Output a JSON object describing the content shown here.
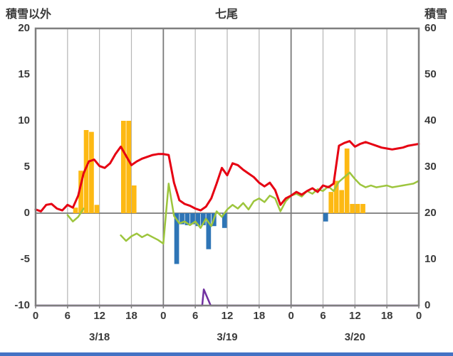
{
  "header": {
    "left_axis_label": "積雪以外",
    "title": "七尾",
    "right_axis_label": "積雪"
  },
  "style": {
    "grid_major": "#7a7a7a",
    "grid_minor": "#b5b5b5",
    "border": "#7f7f7f",
    "text_color": "#3a3a3a",
    "bottom_bar_color": "#4472c4"
  },
  "chart_data": {
    "type": "line",
    "title": "七尾",
    "x": {
      "unit": "hour",
      "min": 0,
      "max": 72,
      "tick_step": 6,
      "tick_labels": [
        "0",
        "6",
        "12",
        "18",
        "0",
        "6",
        "12",
        "18",
        "0",
        "6",
        "12",
        "18",
        "0"
      ],
      "day_labels": [
        "3/18",
        "3/19",
        "3/20"
      ]
    },
    "left_axis": {
      "label": "積雪以外",
      "min": -10,
      "max": 20,
      "ticks": [
        20,
        15,
        10,
        5,
        0,
        -5,
        -10
      ]
    },
    "right_axis": {
      "label": "積雪",
      "min": 0,
      "max": 60,
      "ticks": [
        60,
        50,
        40,
        30,
        20,
        10,
        0
      ]
    },
    "grid": true,
    "legend": "none",
    "series": [
      {
        "name": "orange-bars",
        "type": "bar",
        "axis": "left",
        "color": "#fdb913",
        "points": [
          [
            7,
            0.6
          ],
          [
            8,
            4.6
          ],
          [
            9,
            9.0
          ],
          [
            10,
            8.8
          ],
          [
            11,
            0.9
          ],
          [
            16,
            10.0
          ],
          [
            17,
            10.0
          ],
          [
            18,
            3.0
          ],
          [
            55,
            2.3
          ],
          [
            56,
            3.5
          ],
          [
            57,
            2.5
          ],
          [
            58,
            7.0
          ],
          [
            59,
            1.0
          ],
          [
            60,
            1.0
          ],
          [
            61,
            1.0
          ]
        ]
      },
      {
        "name": "blue-bars",
        "type": "bar",
        "axis": "left",
        "color": "#2e75b6",
        "points": [
          [
            26,
            -5.5
          ],
          [
            27,
            -1.2
          ],
          [
            28,
            -1.3
          ],
          [
            29,
            -1.2
          ],
          [
            30,
            -1.4
          ],
          [
            31,
            -1.3
          ],
          [
            32,
            -3.9
          ],
          [
            33,
            -1.4
          ],
          [
            35,
            -1.6
          ],
          [
            54,
            -0.9
          ]
        ]
      },
      {
        "name": "green-line",
        "type": "line",
        "axis": "left",
        "color": "#9dc53d",
        "width": 2.5,
        "values": [
          null,
          null,
          null,
          null,
          null,
          null,
          -0.2,
          -0.9,
          -0.4,
          0.5,
          null,
          null,
          null,
          null,
          null,
          null,
          -2.4,
          -3.0,
          -2.5,
          -2.2,
          -2.6,
          -2.3,
          -2.6,
          -2.9,
          -3.3,
          3.2,
          -0.3,
          -1.1,
          -0.9,
          -1.3,
          -0.9,
          -1.6,
          -0.6,
          -1.4,
          0.2,
          -0.4,
          0.4,
          0.9,
          0.5,
          1.1,
          0.4,
          1.3,
          1.6,
          1.2,
          1.9,
          1.6,
          0.2,
          1.3,
          1.9,
          2.1,
          1.8,
          2.4,
          2.1,
          2.6,
          2.4,
          2.9,
          2.4,
          3.4,
          3.9,
          4.4,
          3.7,
          3.1,
          2.8,
          3.0,
          2.8,
          2.9,
          3.0,
          2.8,
          2.9,
          3.0,
          3.1,
          3.2,
          3.5
        ]
      },
      {
        "name": "red-temperature-line",
        "type": "line",
        "axis": "left",
        "color": "#e60012",
        "width": 3,
        "values": [
          0.4,
          0.2,
          0.9,
          1.0,
          0.5,
          0.3,
          0.9,
          0.6,
          1.9,
          4.3,
          5.6,
          5.8,
          5.1,
          4.9,
          5.4,
          6.4,
          7.2,
          6.2,
          5.2,
          5.6,
          5.9,
          6.1,
          6.3,
          6.4,
          6.4,
          6.3,
          3.3,
          1.4,
          1.0,
          0.8,
          0.5,
          0.3,
          0.7,
          1.6,
          3.2,
          4.9,
          4.1,
          5.4,
          5.2,
          4.7,
          4.3,
          3.9,
          3.3,
          2.9,
          3.3,
          2.5,
          0.9,
          1.6,
          1.9,
          2.3,
          2.0,
          2.4,
          2.7,
          2.3,
          3.0,
          2.8,
          3.2,
          7.3,
          7.6,
          7.8,
          7.2,
          7.5,
          7.7,
          7.5,
          7.3,
          7.1,
          7.0,
          6.9,
          7.0,
          7.1,
          7.3,
          7.4,
          7.5
        ]
      },
      {
        "name": "purple-snow-depth-line",
        "type": "line",
        "axis": "right",
        "color": "#7030a0",
        "width": 2.5,
        "points": [
          [
            0,
            0
          ],
          [
            31.3,
            0
          ],
          [
            31.6,
            3.5
          ],
          [
            32.9,
            0
          ],
          [
            72,
            0
          ]
        ]
      }
    ]
  }
}
